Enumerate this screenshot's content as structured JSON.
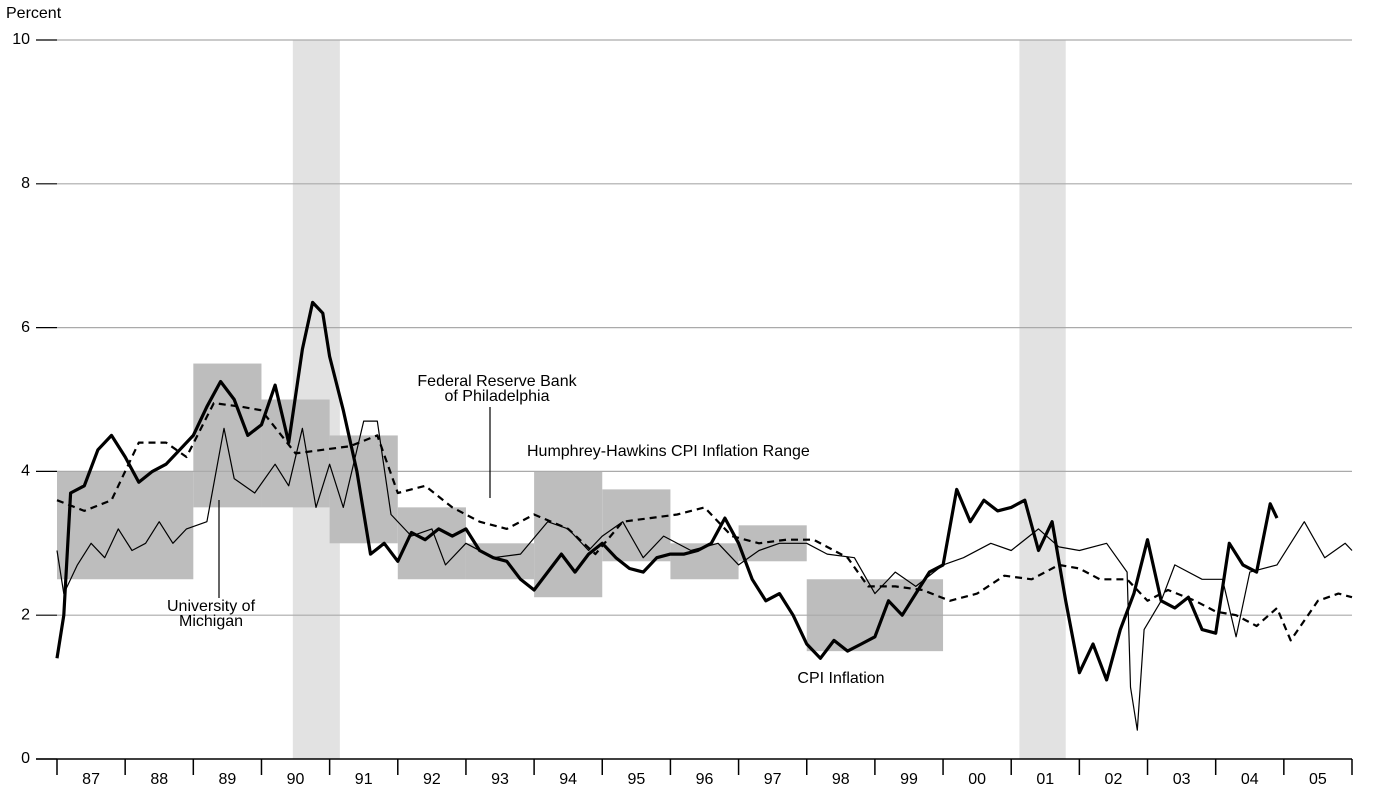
{
  "chart_data": {
    "type": "line",
    "y_axis_label": "Percent",
    "ylim": [
      0,
      10
    ],
    "yticks": [
      0,
      2,
      4,
      6,
      8,
      10
    ],
    "grid": true,
    "xlim": [
      1987,
      2006
    ],
    "xticks": [
      {
        "value": 1987,
        "label": "87"
      },
      {
        "value": 1988,
        "label": "88"
      },
      {
        "value": 1989,
        "label": "89"
      },
      {
        "value": 1990,
        "label": "90"
      },
      {
        "value": 1991,
        "label": "91"
      },
      {
        "value": 1992,
        "label": "92"
      },
      {
        "value": 1993,
        "label": "93"
      },
      {
        "value": 1994,
        "label": "94"
      },
      {
        "value": 1995,
        "label": "95"
      },
      {
        "value": 1996,
        "label": "96"
      },
      {
        "value": 1997,
        "label": "97"
      },
      {
        "value": 1998,
        "label": "98"
      },
      {
        "value": 1999,
        "label": "99"
      },
      {
        "value": 2000,
        "label": "00"
      },
      {
        "value": 2001,
        "label": "01"
      },
      {
        "value": 2002,
        "label": "02"
      },
      {
        "value": 2003,
        "label": "03"
      },
      {
        "value": 2004,
        "label": "04"
      },
      {
        "value": 2005,
        "label": "05"
      }
    ],
    "recessions": {
      "color": "#e2e2e2",
      "spans": [
        [
          1990.46,
          1991.15
        ],
        [
          2001.12,
          2001.8
        ]
      ]
    },
    "ranges": {
      "label": "Humphrey-Hawkins CPI Inflation Range",
      "color": "#bdbdbd",
      "boxes": [
        [
          1987,
          1989,
          2.5,
          4.0
        ],
        [
          1989,
          1990,
          3.5,
          5.5
        ],
        [
          1990,
          1991,
          3.5,
          5.0
        ],
        [
          1991,
          1992,
          3.0,
          4.5
        ],
        [
          1992,
          1993,
          2.5,
          3.5
        ],
        [
          1993,
          1994,
          2.5,
          3.0
        ],
        [
          1994,
          1995,
          2.25,
          4.0
        ],
        [
          1995,
          1996,
          2.75,
          3.75
        ],
        [
          1996,
          1997,
          2.5,
          3.0
        ],
        [
          1997,
          1998,
          2.75,
          3.25
        ],
        [
          1998,
          2000,
          1.5,
          2.5
        ]
      ]
    },
    "series": [
      {
        "label": [
          "Federal Reserve Bank",
          "of Philadelphia"
        ],
        "color": "#000000",
        "dash": true,
        "width": 2.2,
        "x": [
          1987.0,
          1987.4,
          1987.8,
          1988.2,
          1988.6,
          1988.9,
          1989.3,
          1989.7,
          1990.0,
          1990.5,
          1990.9,
          1991.3,
          1991.7,
          1992.0,
          1992.4,
          1992.8,
          1993.2,
          1993.6,
          1994.0,
          1994.5,
          1994.9,
          1995.3,
          1995.7,
          1996.1,
          1996.5,
          1996.9,
          1997.3,
          1997.7,
          1998.1,
          1998.6,
          1998.9,
          1999.3,
          1999.7,
          2000.1,
          2000.5,
          2000.9,
          2001.3,
          2001.7,
          2002.0,
          2002.3,
          2002.7,
          2003.0,
          2003.3,
          2003.7,
          2004.0,
          2004.3,
          2004.6,
          2004.9,
          2005.1,
          2005.5,
          2005.8,
          2006.0
        ],
        "values": [
          3.6,
          3.45,
          3.6,
          4.4,
          4.4,
          4.2,
          4.95,
          4.9,
          4.85,
          4.25,
          4.3,
          4.35,
          4.5,
          3.7,
          3.8,
          3.5,
          3.3,
          3.2,
          3.4,
          3.2,
          2.85,
          3.3,
          3.35,
          3.4,
          3.5,
          3.1,
          3.0,
          3.05,
          3.05,
          2.8,
          2.4,
          2.4,
          2.35,
          2.2,
          2.3,
          2.55,
          2.5,
          2.7,
          2.65,
          2.5,
          2.5,
          2.2,
          2.35,
          2.2,
          2.05,
          2.0,
          1.85,
          2.1,
          1.65,
          2.2,
          2.3,
          2.25
        ]
      },
      {
        "label": [
          "University of",
          "Michigan"
        ],
        "color": "#000000",
        "dash": false,
        "width": 1.2,
        "x": [
          1987.0,
          1987.1,
          1987.3,
          1987.5,
          1987.7,
          1987.9,
          1988.1,
          1988.3,
          1988.5,
          1988.7,
          1988.9,
          1989.2,
          1989.45,
          1989.6,
          1989.9,
          1990.2,
          1990.4,
          1990.6,
          1990.8,
          1991.0,
          1991.2,
          1991.5,
          1991.7,
          1991.9,
          1992.2,
          1992.5,
          1992.7,
          1993.0,
          1993.4,
          1993.8,
          1994.2,
          1994.5,
          1994.8,
          1995.0,
          1995.3,
          1995.6,
          1995.9,
          1996.3,
          1996.7,
          1997.0,
          1997.3,
          1997.6,
          1998.0,
          1998.3,
          1998.7,
          1999.0,
          1999.3,
          1999.6,
          2000.0,
          2000.3,
          2000.7,
          2001.0,
          2001.4,
          2001.7,
          2002.0,
          2002.4,
          2002.7,
          2002.75,
          2002.85,
          2002.95,
          2003.2,
          2003.4,
          2003.8,
          2004.1,
          2004.3,
          2004.5,
          2004.9,
          2005.3,
          2005.6,
          2005.9,
          2006.0
        ],
        "values": [
          2.9,
          2.3,
          2.7,
          3.0,
          2.8,
          3.2,
          2.9,
          3.0,
          3.3,
          3.0,
          3.2,
          3.3,
          4.6,
          3.9,
          3.7,
          4.1,
          3.8,
          4.6,
          3.5,
          4.1,
          3.5,
          4.7,
          4.7,
          3.4,
          3.1,
          3.2,
          2.7,
          3.0,
          2.8,
          2.85,
          3.3,
          3.2,
          2.9,
          3.1,
          3.3,
          2.8,
          3.1,
          2.9,
          3.0,
          2.7,
          2.9,
          3.0,
          3.0,
          2.85,
          2.8,
          2.3,
          2.6,
          2.4,
          2.7,
          2.8,
          3.0,
          2.9,
          3.2,
          2.95,
          2.9,
          3.0,
          2.6,
          1.0,
          0.4,
          1.8,
          2.2,
          2.7,
          2.5,
          2.5,
          1.7,
          2.6,
          2.7,
          3.3,
          2.8,
          3.0,
          2.9
        ]
      },
      {
        "label": [
          "CPI Inflation"
        ],
        "color": "#000000",
        "dash": false,
        "width": 3.2,
        "x": [
          1987.0,
          1987.1,
          1987.2,
          1987.4,
          1987.6,
          1987.8,
          1988.0,
          1988.2,
          1988.4,
          1988.6,
          1988.8,
          1989.0,
          1989.2,
          1989.4,
          1989.6,
          1989.8,
          1990.0,
          1990.2,
          1990.4,
          1990.6,
          1990.75,
          1990.9,
          1991.0,
          1991.2,
          1991.4,
          1991.6,
          1991.8,
          1992.0,
          1992.2,
          1992.4,
          1992.6,
          1992.8,
          1993.0,
          1993.2,
          1993.4,
          1993.6,
          1993.8,
          1994.0,
          1994.2,
          1994.4,
          1994.6,
          1994.8,
          1995.0,
          1995.2,
          1995.4,
          1995.6,
          1995.8,
          1996.0,
          1996.2,
          1996.4,
          1996.6,
          1996.8,
          1997.0,
          1997.2,
          1997.4,
          1997.6,
          1997.8,
          1998.0,
          1998.2,
          1998.4,
          1998.6,
          1998.8,
          1999.0,
          1999.2,
          1999.4,
          1999.6,
          1999.8,
          2000.0,
          2000.2,
          2000.4,
          2000.6,
          2000.8,
          2001.0,
          2001.2,
          2001.4,
          2001.6,
          2001.8,
          2002.0,
          2002.2,
          2002.4,
          2002.6,
          2002.8,
          2003.0,
          2003.2,
          2003.4,
          2003.6,
          2003.8,
          2004.0,
          2004.2,
          2004.4,
          2004.6,
          2004.8,
          2004.9
        ],
        "values": [
          1.4,
          2.0,
          3.7,
          3.8,
          4.3,
          4.5,
          4.2,
          3.85,
          4.0,
          4.1,
          4.3,
          4.5,
          4.9,
          5.25,
          5.0,
          4.5,
          4.65,
          5.2,
          4.4,
          5.7,
          6.35,
          6.2,
          5.6,
          4.85,
          4.0,
          2.85,
          3.0,
          2.75,
          3.15,
          3.05,
          3.2,
          3.1,
          3.2,
          2.9,
          2.8,
          2.75,
          2.5,
          2.35,
          2.6,
          2.85,
          2.6,
          2.85,
          3.0,
          2.8,
          2.65,
          2.6,
          2.8,
          2.85,
          2.85,
          2.9,
          3.0,
          3.35,
          3.0,
          2.5,
          2.2,
          2.3,
          2.0,
          1.6,
          1.4,
          1.65,
          1.5,
          1.6,
          1.7,
          2.2,
          2.0,
          2.3,
          2.6,
          2.7,
          3.75,
          3.3,
          3.6,
          3.45,
          3.5,
          3.6,
          2.9,
          3.3,
          2.2,
          1.2,
          1.6,
          1.1,
          1.8,
          2.3,
          3.05,
          2.2,
          2.1,
          2.25,
          1.8,
          1.75,
          3.0,
          2.7,
          2.6,
          3.55,
          3.35
        ]
      }
    ]
  }
}
